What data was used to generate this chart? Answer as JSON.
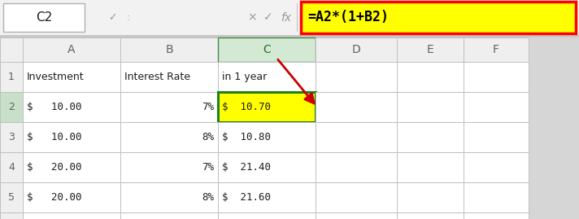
{
  "title_bar_text": "C2",
  "formula_text": "=A2*(1+B2)",
  "col_headers": [
    "A",
    "B",
    "C",
    "D",
    "E",
    "F"
  ],
  "header_row": [
    "Investment",
    "Interest Rate",
    "in 1 year",
    "",
    "",
    ""
  ],
  "data_rows": [
    [
      "$   10.00",
      "7%",
      "$  10.70",
      "",
      "",
      ""
    ],
    [
      "$   10.00",
      "8%",
      "$  10.80",
      "",
      "",
      ""
    ],
    [
      "$   20.00",
      "7%",
      "$  21.40",
      "",
      "",
      ""
    ],
    [
      "$   20.00",
      "8%",
      "$  21.60",
      "",
      "",
      ""
    ]
  ],
  "bg_color": "#d6d6d6",
  "cell_bg": "#ffffff",
  "col_header_bg": "#efefef",
  "col_header_selected_bg": "#d3e9d3",
  "selected_cell_bg": "#ffff00",
  "formula_box_bg": "#ffff00",
  "formula_box_border": "#ff0000",
  "grid_color": "#c0c0c0",
  "dark_border": "#404040",
  "text_color": "#1f1f1f",
  "row_num_bg": "#efefef",
  "row_num_selected_bg": "#c8e0c8",
  "name_box_bg": "#ffffff",
  "icon_bar_bg": "#f2f2f2",
  "formula_bar_bg": "#f2f2f2",
  "outer_border": "#a0a0a0",
  "selected_col_header_text": "#207020",
  "col_header_text": "#606060",
  "row_num_text": "#606060"
}
